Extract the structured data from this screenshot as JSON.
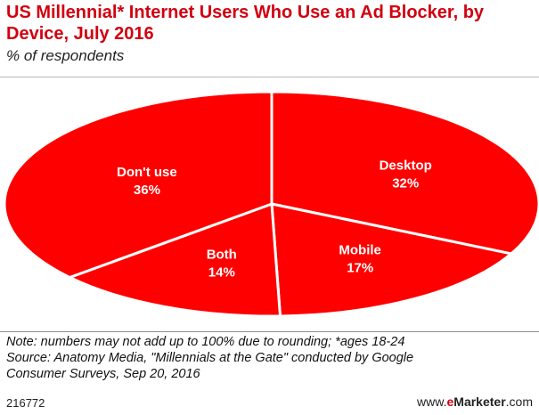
{
  "header": {
    "title": "US Millennial* Internet Users Who Use an Ad Blocker, by Device, July 2016",
    "subtitle": "% of respondents"
  },
  "colors": {
    "slice_fill": "#ff0000",
    "slice_stroke": "#ffffff",
    "title": "#d2000f"
  },
  "chart_data": {
    "type": "pie",
    "categories": [
      "Desktop",
      "Mobile",
      "Both",
      "Don't use"
    ],
    "values": [
      32,
      17,
      14,
      36
    ],
    "value_labels": [
      "32%",
      "17%",
      "14%",
      "36%"
    ],
    "style": "tilted 3D pie, single color slices"
  },
  "footer": {
    "note": "Note: numbers may not add up to 100% due to rounding; *ages 18-24",
    "source_line1": "Source: Anatomy Media, \"Millennials at the Gate\" conducted by Google",
    "source_line2": "Consumer Surveys, Sep 20, 2016",
    "chart_id": "216772",
    "brand_prefix": "www.",
    "brand_e": "e",
    "brand_main": "Marketer",
    "brand_suffix": ".com"
  }
}
